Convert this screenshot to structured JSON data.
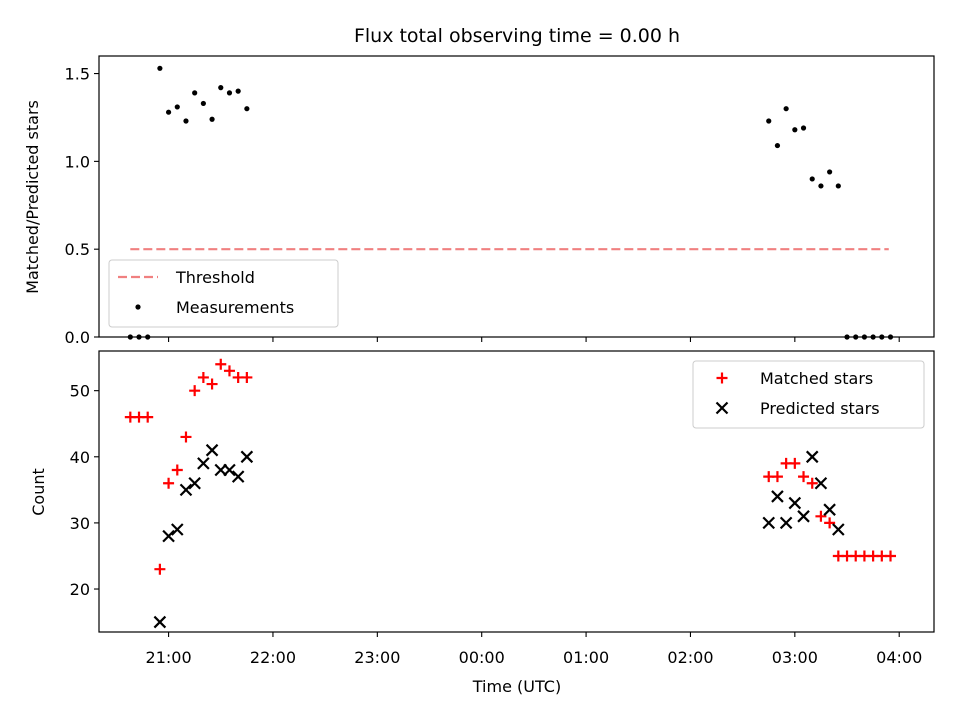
{
  "chart_data": {
    "title": "Flux total observing time = 0.00 h",
    "xlabel": "Time (UTC)",
    "x_unit": "time of day (UTC), overnight",
    "x_ticks": [
      "21:00",
      "22:00",
      "23:00",
      "00:00",
      "01:00",
      "02:00",
      "03:00",
      "04:00"
    ],
    "panels": [
      {
        "type": "scatter",
        "ylabel": "Matched/Predicted stars",
        "ylim": [
          0,
          1.6
        ],
        "yticks": [
          0.0,
          0.5,
          1.0,
          1.5
        ],
        "y_tick_labels": [
          "0.0",
          "0.5",
          "1.0",
          "1.5"
        ],
        "legend_position": "lower-left",
        "series": [
          {
            "name": "Threshold",
            "kind": "dashed-line",
            "color": "#f08080",
            "points": [
              {
                "x": "20:38",
                "y": 0.5
              },
              {
                "x": "03:54",
                "y": 0.5
              }
            ]
          },
          {
            "name": "Measurements",
            "kind": "dot",
            "color": "#000000",
            "points": [
              {
                "x": "20:38",
                "y": 0.0
              },
              {
                "x": "20:43",
                "y": 0.0
              },
              {
                "x": "20:48",
                "y": 0.0
              },
              {
                "x": "20:55",
                "y": 1.53
              },
              {
                "x": "21:00",
                "y": 1.28
              },
              {
                "x": "21:05",
                "y": 1.31
              },
              {
                "x": "21:10",
                "y": 1.23
              },
              {
                "x": "21:15",
                "y": 1.39
              },
              {
                "x": "21:20",
                "y": 1.33
              },
              {
                "x": "21:25",
                "y": 1.24
              },
              {
                "x": "21:30",
                "y": 1.42
              },
              {
                "x": "21:35",
                "y": 1.39
              },
              {
                "x": "21:40",
                "y": 1.4
              },
              {
                "x": "21:45",
                "y": 1.3
              },
              {
                "x": "02:45",
                "y": 1.23
              },
              {
                "x": "02:50",
                "y": 1.09
              },
              {
                "x": "02:55",
                "y": 1.3
              },
              {
                "x": "03:00",
                "y": 1.18
              },
              {
                "x": "03:05",
                "y": 1.19
              },
              {
                "x": "03:10",
                "y": 0.9
              },
              {
                "x": "03:15",
                "y": 0.86
              },
              {
                "x": "03:20",
                "y": 0.94
              },
              {
                "x": "03:25",
                "y": 0.86
              },
              {
                "x": "03:30",
                "y": 0.0
              },
              {
                "x": "03:35",
                "y": 0.0
              },
              {
                "x": "03:40",
                "y": 0.0
              },
              {
                "x": "03:45",
                "y": 0.0
              },
              {
                "x": "03:50",
                "y": 0.0
              },
              {
                "x": "03:55",
                "y": 0.0
              }
            ]
          }
        ]
      },
      {
        "type": "scatter",
        "ylabel": "Count",
        "ylim": [
          13.5,
          56
        ],
        "yticks": [
          20,
          30,
          40,
          50
        ],
        "y_tick_labels": [
          "20",
          "30",
          "40",
          "50"
        ],
        "legend_position": "upper-right",
        "series": [
          {
            "name": "Matched stars",
            "kind": "plus",
            "color": "#ff0000",
            "points": [
              {
                "x": "20:38",
                "y": 46
              },
              {
                "x": "20:43",
                "y": 46
              },
              {
                "x": "20:48",
                "y": 46
              },
              {
                "x": "20:55",
                "y": 23
              },
              {
                "x": "21:00",
                "y": 36
              },
              {
                "x": "21:05",
                "y": 38
              },
              {
                "x": "21:10",
                "y": 43
              },
              {
                "x": "21:15",
                "y": 50
              },
              {
                "x": "21:20",
                "y": 52
              },
              {
                "x": "21:25",
                "y": 51
              },
              {
                "x": "21:30",
                "y": 54
              },
              {
                "x": "21:35",
                "y": 53
              },
              {
                "x": "21:40",
                "y": 52
              },
              {
                "x": "21:45",
                "y": 52
              },
              {
                "x": "02:45",
                "y": 37
              },
              {
                "x": "02:50",
                "y": 37
              },
              {
                "x": "02:55",
                "y": 39
              },
              {
                "x": "03:00",
                "y": 39
              },
              {
                "x": "03:05",
                "y": 37
              },
              {
                "x": "03:10",
                "y": 36
              },
              {
                "x": "03:15",
                "y": 31
              },
              {
                "x": "03:20",
                "y": 30
              },
              {
                "x": "03:25",
                "y": 25
              },
              {
                "x": "03:30",
                "y": 25
              },
              {
                "x": "03:35",
                "y": 25
              },
              {
                "x": "03:40",
                "y": 25
              },
              {
                "x": "03:45",
                "y": 25
              },
              {
                "x": "03:50",
                "y": 25
              },
              {
                "x": "03:55",
                "y": 25
              }
            ]
          },
          {
            "name": "Predicted stars",
            "kind": "x",
            "color": "#000000",
            "points": [
              {
                "x": "20:55",
                "y": 15
              },
              {
                "x": "21:00",
                "y": 28
              },
              {
                "x": "21:05",
                "y": 29
              },
              {
                "x": "21:10",
                "y": 35
              },
              {
                "x": "21:15",
                "y": 36
              },
              {
                "x": "21:20",
                "y": 39
              },
              {
                "x": "21:25",
                "y": 41
              },
              {
                "x": "21:30",
                "y": 38
              },
              {
                "x": "21:35",
                "y": 38
              },
              {
                "x": "21:40",
                "y": 37
              },
              {
                "x": "21:45",
                "y": 40
              },
              {
                "x": "02:45",
                "y": 30
              },
              {
                "x": "02:50",
                "y": 34
              },
              {
                "x": "02:55",
                "y": 30
              },
              {
                "x": "03:00",
                "y": 33
              },
              {
                "x": "03:05",
                "y": 31
              },
              {
                "x": "03:10",
                "y": 40
              },
              {
                "x": "03:15",
                "y": 36
              },
              {
                "x": "03:20",
                "y": 32
              },
              {
                "x": "03:25",
                "y": 29
              }
            ]
          }
        ]
      }
    ]
  }
}
